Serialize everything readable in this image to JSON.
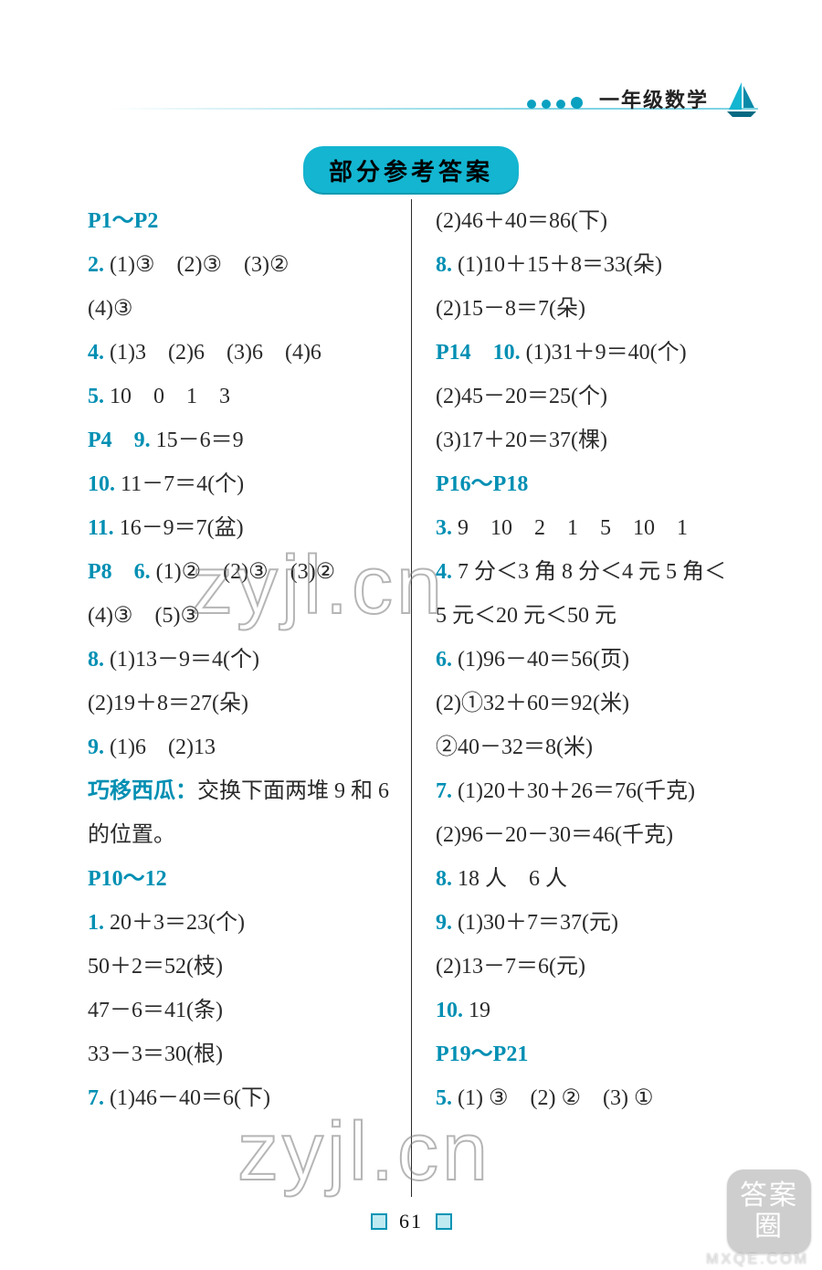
{
  "header": {
    "subject_label": "一年级数学",
    "rule_color": "#0aa0c0",
    "dot_color": "#0aa0c0",
    "sail_fill": "#0a8aa8",
    "sail_accent": "#13b5d1"
  },
  "title": {
    "text": "部分参考答案",
    "bg": "#13b5d1",
    "fontsize": 26
  },
  "style": {
    "text_color": "#2a2a2a",
    "blue": "#008fb3",
    "body_fontsize": 24,
    "line_height": 48,
    "page_bg": "#ffffff",
    "divider_color": "#2a2a2a"
  },
  "left_lines": [
    [
      {
        "t": "P1～P2",
        "b": true
      }
    ],
    [
      {
        "t": "2.",
        "b": true
      },
      {
        "t": " (1)③　(2)③　(3)②"
      }
    ],
    [
      {
        "t": "(4)③"
      }
    ],
    [
      {
        "t": "4.",
        "b": true
      },
      {
        "t": " (1)3　(2)6　(3)6　(4)6"
      }
    ],
    [
      {
        "t": "5.",
        "b": true
      },
      {
        "t": " 10　0　1　3"
      }
    ],
    [
      {
        "t": "P4　9.",
        "b": true
      },
      {
        "t": " 15－6＝9"
      }
    ],
    [
      {
        "t": "10.",
        "b": true
      },
      {
        "t": " 11－7＝4(个)"
      }
    ],
    [
      {
        "t": "11.",
        "b": true
      },
      {
        "t": " 16－9＝7(盆)"
      }
    ],
    [
      {
        "t": "P8　6.",
        "b": true
      },
      {
        "t": " (1)②　(2)③　(3)②"
      }
    ],
    [
      {
        "t": "(4)③　(5)③"
      }
    ],
    [
      {
        "t": "8.",
        "b": true
      },
      {
        "t": " (1)13－9＝4(个)"
      }
    ],
    [
      {
        "t": "(2)19＋8＝27(朵)"
      }
    ],
    [
      {
        "t": "9.",
        "b": true
      },
      {
        "t": " (1)6　(2)13"
      }
    ],
    [
      {
        "t": "巧移西瓜：",
        "b": true
      },
      {
        "t": "交换下面两堆 9 和 6"
      }
    ],
    [
      {
        "t": "的位置。"
      }
    ],
    [
      {
        "t": "P10～12",
        "b": true
      }
    ],
    [
      {
        "t": "1.",
        "b": true
      },
      {
        "t": " 20＋3＝23(个)"
      }
    ],
    [
      {
        "t": "50＋2＝52(枝)"
      }
    ],
    [
      {
        "t": "47－6＝41(条)"
      }
    ],
    [
      {
        "t": "33－3＝30(根)"
      }
    ],
    [
      {
        "t": "7.",
        "b": true
      },
      {
        "t": " (1)46－40＝6(下)"
      }
    ]
  ],
  "right_lines": [
    [
      {
        "t": "(2)46＋40＝86(下)"
      }
    ],
    [
      {
        "t": "8.",
        "b": true
      },
      {
        "t": " (1)10＋15＋8＝33(朵)"
      }
    ],
    [
      {
        "t": "(2)15－8＝7(朵)"
      }
    ],
    [
      {
        "t": "P14　10.",
        "b": true
      },
      {
        "t": " (1)31＋9＝40(个)"
      }
    ],
    [
      {
        "t": "(2)45－20＝25(个)"
      }
    ],
    [
      {
        "t": "(3)17＋20＝37(棵)"
      }
    ],
    [
      {
        "t": "P16～P18",
        "b": true
      }
    ],
    [
      {
        "t": "3.",
        "b": true
      },
      {
        "t": " 9　10　2　1　5　10　1"
      }
    ],
    [
      {
        "t": "4.",
        "b": true
      },
      {
        "t": " 7 分＜3 角 8 分＜4 元 5 角＜"
      }
    ],
    [
      {
        "t": "5 元＜20 元＜50 元"
      }
    ],
    [
      {
        "t": "6.",
        "b": true
      },
      {
        "t": " (1)96－40＝56(页)"
      }
    ],
    [
      {
        "t": "(2)①32＋60＝92(米)"
      }
    ],
    [
      {
        "t": "②40－32＝8(米)"
      }
    ],
    [
      {
        "t": "7.",
        "b": true
      },
      {
        "t": " (1)20＋30＋26＝76(千克)"
      }
    ],
    [
      {
        "t": "(2)96－20－30＝46(千克)"
      }
    ],
    [
      {
        "t": "8.",
        "b": true
      },
      {
        "t": " 18 人　6 人"
      }
    ],
    [
      {
        "t": "9.",
        "b": true
      },
      {
        "t": " (1)30＋7＝37(元)"
      }
    ],
    [
      {
        "t": "(2)13－7＝6(元)"
      }
    ],
    [
      {
        "t": "10.",
        "b": true
      },
      {
        "t": " 19"
      }
    ],
    [
      {
        "t": "P19～P21",
        "b": true
      }
    ],
    [
      {
        "t": "5.",
        "b": true
      },
      {
        "t": " (1) ③　(2) ②　(3) ①"
      }
    ]
  ],
  "footer": {
    "page_number": "61"
  },
  "watermarks": {
    "wm1": "zyjl.cn",
    "wm2": "zyjl.cn",
    "badge": "答案圈",
    "url": "MXQE.COM"
  }
}
